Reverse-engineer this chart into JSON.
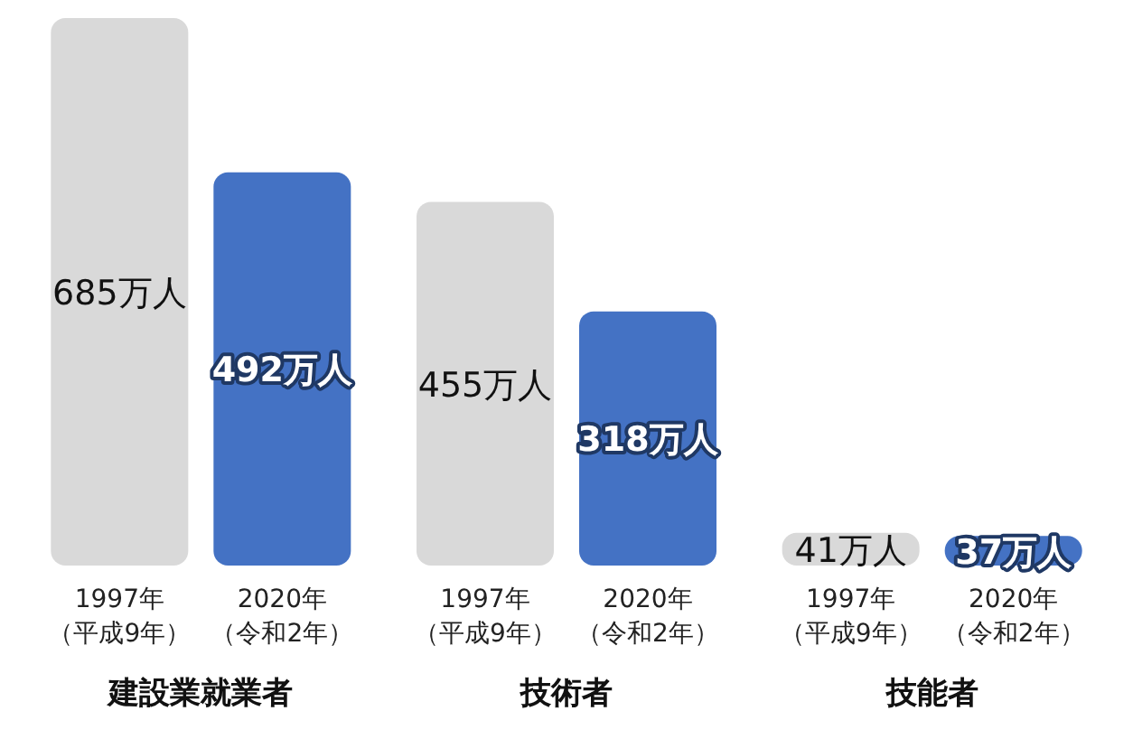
{
  "chart_data": {
    "type": "bar",
    "categories": [
      "建設業就業者",
      "技術者",
      "技能者"
    ],
    "legend": false,
    "series": [
      {
        "name": "1997年（平成9年）",
        "color": "#d9d9d9",
        "values": [
          685,
          455,
          41
        ],
        "value_labels": [
          "685万人",
          "455万人",
          "41万人"
        ]
      },
      {
        "name": "2020年（令和2年）",
        "color": "#4472c4",
        "values": [
          492,
          318,
          37
        ],
        "value_labels": [
          "492万人",
          "318万人",
          "37万人"
        ]
      }
    ]
  }
}
